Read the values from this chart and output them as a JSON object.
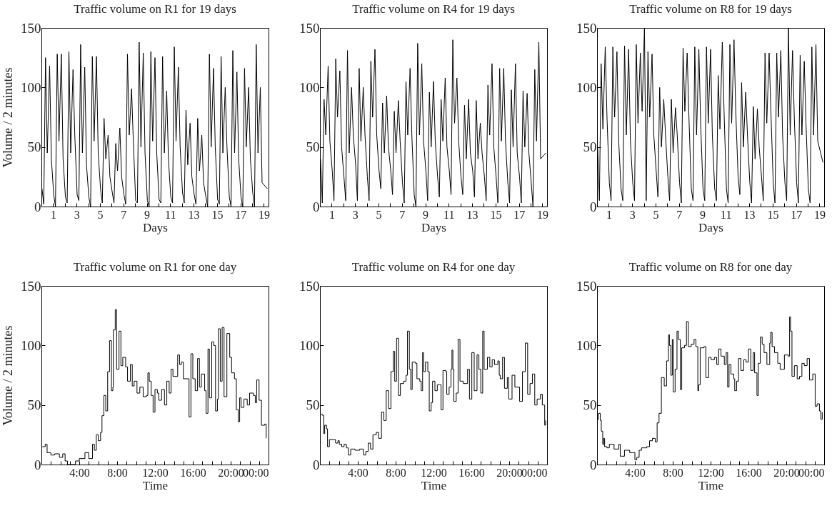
{
  "chart_data": [
    {
      "type": "line",
      "title": "Traffic volume on R1 for 19 days",
      "xlabel": "Days",
      "ylabel": "Volume / 2 minutes",
      "xlim": [
        0,
        19.4
      ],
      "ylim": [
        0,
        150
      ],
      "yticks": [
        0,
        50,
        100,
        150
      ],
      "xticks": [
        1,
        {
          "value": 2,
          "label": null
        },
        3,
        {
          "value": 4,
          "label": null
        },
        5,
        {
          "value": 6,
          "label": null
        },
        7,
        {
          "value": 8,
          "label": null
        },
        9,
        {
          "value": 10,
          "label": null
        },
        11,
        {
          "value": 12,
          "label": null
        },
        13,
        {
          "value": 14,
          "label": null
        },
        15,
        {
          "value": 16,
          "label": null
        },
        17,
        {
          "value": 18,
          "label": null
        },
        19
      ],
      "x": [
        0.05,
        0.2,
        0.35,
        0.5,
        0.7,
        0.85,
        1.05,
        1.2,
        1.35,
        1.5,
        1.7,
        1.85,
        2.05,
        2.2,
        2.35,
        2.5,
        2.7,
        2.85,
        3.05,
        3.2,
        3.35,
        3.5,
        3.7,
        3.85,
        4.05,
        4.2,
        4.35,
        4.5,
        4.7,
        4.85,
        5.05,
        5.2,
        5.35,
        5.5,
        5.7,
        5.85,
        6.05,
        6.2,
        6.35,
        6.5,
        6.7,
        6.85,
        7.05,
        7.2,
        7.35,
        7.5,
        7.7,
        7.85,
        8.05,
        8.2,
        8.35,
        8.5,
        8.7,
        8.85,
        9.05,
        9.2,
        9.35,
        9.5,
        9.7,
        9.85,
        10.05,
        10.2,
        10.35,
        10.5,
        10.7,
        10.85,
        11.05,
        11.2,
        11.35,
        11.5,
        11.7,
        11.85,
        12.05,
        12.2,
        12.35,
        12.5,
        12.7,
        12.85,
        13.05,
        13.2,
        13.35,
        13.5,
        13.7,
        13.85,
        14.05,
        14.2,
        14.35,
        14.5,
        14.7,
        14.85,
        15.05,
        15.2,
        15.35,
        15.5,
        15.7,
        15.85,
        16.05,
        16.2,
        16.35,
        16.5,
        16.7,
        16.85,
        17.05,
        17.2,
        17.35,
        17.5,
        17.7,
        17.85,
        18.05,
        18.2,
        18.35,
        18.5,
        18.7,
        18.85,
        19.3
      ],
      "series": [
        {
          "color": "#000000",
          "values": [
            15,
            2,
            125,
            45,
            118,
            40,
            10,
            0,
            128,
            55,
            128,
            40,
            8,
            3,
            130,
            45,
            115,
            60,
            10,
            5,
            136,
            45,
            117,
            35,
            8,
            0,
            126,
            55,
            126,
            45,
            15,
            3,
            74,
            40,
            60,
            25,
            12,
            3,
            53,
            30,
            66,
            25,
            10,
            2,
            128,
            60,
            99,
            55,
            5,
            3,
            138,
            50,
            129,
            45,
            5,
            0,
            130,
            55,
            125,
            45,
            6,
            3,
            126,
            45,
            97,
            40,
            8,
            3,
            134,
            55,
            117,
            50,
            12,
            3,
            81,
            35,
            70,
            25,
            10,
            2,
            74,
            30,
            60,
            20,
            8,
            0,
            128,
            50,
            116,
            50,
            6,
            2,
            126,
            45,
            100,
            50,
            8,
            0,
            131,
            45,
            113,
            40,
            8,
            0,
            116,
            50,
            100,
            40,
            12,
            0,
            136,
            45,
            100,
            20,
            15
          ]
        }
      ]
    },
    {
      "type": "line",
      "title": "Traffic volume on R4 for 19 days",
      "xlabel": "Days",
      "xlim": [
        0,
        19.4
      ],
      "ylim": [
        0,
        150
      ],
      "yticks": [
        0,
        50,
        100,
        150
      ],
      "xticks": [
        1,
        {
          "value": 2,
          "label": null
        },
        3,
        {
          "value": 4,
          "label": null
        },
        5,
        {
          "value": 6,
          "label": null
        },
        7,
        {
          "value": 8,
          "label": null
        },
        9,
        {
          "value": 10,
          "label": null
        },
        11,
        {
          "value": 12,
          "label": null
        },
        13,
        {
          "value": 14,
          "label": null
        },
        15,
        {
          "value": 16,
          "label": null
        },
        17,
        {
          "value": 18,
          "label": null
        },
        19
      ],
      "x": [
        0.05,
        0.2,
        0.35,
        0.5,
        0.7,
        0.85,
        1.05,
        1.2,
        1.35,
        1.5,
        1.7,
        1.85,
        2.05,
        2.2,
        2.35,
        2.5,
        2.7,
        2.85,
        3.05,
        3.2,
        3.35,
        3.5,
        3.7,
        3.85,
        4.05,
        4.2,
        4.35,
        4.5,
        4.7,
        4.85,
        5.05,
        5.2,
        5.35,
        5.5,
        5.7,
        5.85,
        6.05,
        6.2,
        6.35,
        6.5,
        6.7,
        6.85,
        7.05,
        7.2,
        7.35,
        7.5,
        7.7,
        7.85,
        8.05,
        8.2,
        8.35,
        8.5,
        8.7,
        8.85,
        9.05,
        9.2,
        9.35,
        9.5,
        9.7,
        9.85,
        10.05,
        10.2,
        10.35,
        10.5,
        10.7,
        10.85,
        11.05,
        11.2,
        11.35,
        11.5,
        11.7,
        11.85,
        12.05,
        12.2,
        12.35,
        12.5,
        12.7,
        12.85,
        13.05,
        13.2,
        13.35,
        13.5,
        13.7,
        13.85,
        14.05,
        14.2,
        14.35,
        14.5,
        14.7,
        14.85,
        15.05,
        15.2,
        15.35,
        15.5,
        15.7,
        15.85,
        16.05,
        16.2,
        16.35,
        16.5,
        16.7,
        16.85,
        17.05,
        17.2,
        17.35,
        17.5,
        17.7,
        17.85,
        18.05,
        18.2,
        18.35,
        18.5,
        18.7,
        18.85,
        19.3
      ],
      "series": [
        {
          "color": "#000000",
          "values": [
            40,
            3,
            90,
            60,
            118,
            55,
            30,
            5,
            124,
            75,
            114,
            50,
            25,
            5,
            131,
            45,
            100,
            60,
            35,
            5,
            116,
            55,
            100,
            60,
            25,
            5,
            122,
            75,
            132,
            60,
            30,
            15,
            87,
            45,
            93,
            50,
            30,
            10,
            80,
            45,
            89,
            55,
            20,
            3,
            105,
            60,
            116,
            60,
            10,
            0,
            137,
            60,
            120,
            55,
            30,
            5,
            96,
            50,
            105,
            55,
            25,
            8,
            90,
            55,
            108,
            50,
            30,
            10,
            140,
            70,
            108,
            55,
            25,
            10,
            85,
            40,
            90,
            45,
            30,
            8,
            89,
            40,
            70,
            45,
            25,
            5,
            102,
            60,
            120,
            50,
            25,
            3,
            116,
            55,
            116,
            55,
            20,
            3,
            98,
            50,
            120,
            45,
            25,
            3,
            97,
            50,
            95,
            45,
            20,
            0,
            115,
            55,
            138,
            40,
            45
          ]
        }
      ]
    },
    {
      "type": "line",
      "title": "Traffic volume on R8 for 19 days",
      "xlabel": "Days",
      "xlim": [
        0,
        19.4
      ],
      "ylim": [
        0,
        150
      ],
      "yticks": [
        0,
        50,
        100,
        150
      ],
      "xticks": [
        1,
        {
          "value": 2,
          "label": null
        },
        3,
        {
          "value": 4,
          "label": null
        },
        5,
        {
          "value": 6,
          "label": null
        },
        7,
        {
          "value": 8,
          "label": null
        },
        9,
        {
          "value": 10,
          "label": null
        },
        11,
        {
          "value": 12,
          "label": null
        },
        13,
        {
          "value": 14,
          "label": null
        },
        15,
        {
          "value": 16,
          "label": null
        },
        17,
        {
          "value": 18,
          "label": null
        },
        19
      ],
      "x": [
        0.05,
        0.2,
        0.35,
        0.5,
        0.7,
        0.85,
        1.05,
        1.2,
        1.35,
        1.5,
        1.7,
        1.85,
        2.05,
        2.2,
        2.35,
        2.5,
        2.7,
        2.85,
        3.05,
        3.2,
        3.35,
        3.5,
        3.7,
        3.85,
        4.05,
        4.2,
        4.35,
        4.5,
        4.7,
        4.85,
        5.05,
        5.2,
        5.35,
        5.5,
        5.7,
        5.85,
        6.05,
        6.2,
        6.35,
        6.5,
        6.7,
        6.85,
        7.05,
        7.2,
        7.35,
        7.5,
        7.7,
        7.85,
        8.05,
        8.2,
        8.35,
        8.5,
        8.7,
        8.85,
        9.05,
        9.2,
        9.35,
        9.5,
        9.7,
        9.85,
        10.05,
        10.2,
        10.35,
        10.5,
        10.7,
        10.85,
        11.05,
        11.2,
        11.35,
        11.5,
        11.7,
        11.85,
        12.05,
        12.2,
        12.35,
        12.5,
        12.7,
        12.85,
        13.05,
        13.2,
        13.35,
        13.5,
        13.7,
        13.85,
        14.05,
        14.2,
        14.35,
        14.5,
        14.7,
        14.85,
        15.05,
        15.2,
        15.35,
        15.5,
        15.7,
        15.85,
        16.05,
        16.2,
        16.35,
        16.5,
        16.7,
        16.85,
        17.05,
        17.2,
        17.35,
        17.5,
        17.7,
        17.85,
        18.05,
        18.2,
        18.35,
        18.5,
        18.7,
        18.85,
        19.3
      ],
      "series": [
        {
          "color": "#000000",
          "values": [
            50,
            5,
            120,
            65,
            134,
            75,
            20,
            5,
            134,
            75,
            130,
            55,
            15,
            5,
            135,
            60,
            132,
            55,
            20,
            5,
            136,
            70,
            129,
            80,
            150,
            5,
            130,
            75,
            128,
            60,
            30,
            8,
            100,
            50,
            90,
            60,
            25,
            5,
            90,
            45,
            83,
            60,
            20,
            3,
            133,
            80,
            129,
            75,
            15,
            5,
            134,
            60,
            132,
            70,
            15,
            5,
            134,
            70,
            132,
            60,
            15,
            5,
            110,
            65,
            138,
            80,
            15,
            3,
            136,
            70,
            140,
            80,
            25,
            10,
            104,
            50,
            96,
            60,
            20,
            3,
            84,
            40,
            82,
            50,
            25,
            5,
            129,
            70,
            129,
            80,
            20,
            3,
            129,
            75,
            131,
            60,
            20,
            5,
            150,
            60,
            131,
            75,
            20,
            3,
            127,
            60,
            122,
            70,
            15,
            3,
            134,
            60,
            136,
            55,
            37
          ]
        }
      ]
    },
    {
      "type": "step",
      "title": "Traffic volume on R1 for one day",
      "xlabel": "Time",
      "ylabel": "Volume / 2 minutes",
      "xlim": [
        0,
        24
      ],
      "ylim": [
        0,
        150
      ],
      "yticks": [
        0,
        50,
        100,
        150
      ],
      "xticks": [
        {
          "value": 1,
          "label": null
        },
        {
          "value": 2,
          "label": null
        },
        {
          "value": 3,
          "label": null
        },
        {
          "value": 4,
          "label": "4:00"
        },
        {
          "value": 5,
          "label": null
        },
        {
          "value": 6,
          "label": null
        },
        {
          "value": 7,
          "label": null
        },
        {
          "value": 8,
          "label": "8:00"
        },
        {
          "value": 9,
          "label": null
        },
        {
          "value": 10,
          "label": null
        },
        {
          "value": 11,
          "label": null
        },
        {
          "value": 12,
          "label": "12:00"
        },
        {
          "value": 13,
          "label": null
        },
        {
          "value": 14,
          "label": null
        },
        {
          "value": 15,
          "label": null
        },
        {
          "value": 16,
          "label": "16:00"
        },
        {
          "value": 17,
          "label": null
        },
        {
          "value": 18,
          "label": null
        },
        {
          "value": 19,
          "label": null
        },
        {
          "value": 20,
          "label": "20:00"
        },
        {
          "value": 21,
          "label": null
        },
        {
          "value": 22,
          "label": null
        },
        {
          "value": 23,
          "label": null
        },
        {
          "value": 24,
          "label": "00:00"
        }
      ],
      "x": [
        0.1,
        0.4,
        0.6,
        1.0,
        1.4,
        1.9,
        2.25,
        2.5,
        2.75,
        3.1,
        3.6,
        4.0,
        4.6,
        5.0,
        5.4,
        5.6,
        5.8,
        6.0,
        6.25,
        6.4,
        6.6,
        6.8,
        7.0,
        7.2,
        7.4,
        7.55,
        7.6,
        7.8,
        7.95,
        8.2,
        8.4,
        8.6,
        8.9,
        9.1,
        9.4,
        9.6,
        9.8,
        10.1,
        10.4,
        10.75,
        11.1,
        11.25,
        11.4,
        11.6,
        11.8,
        12.0,
        12.25,
        12.4,
        12.7,
        13.0,
        13.25,
        13.5,
        13.7,
        13.9,
        14.1,
        14.4,
        14.6,
        14.8,
        15.0,
        15.6,
        15.8,
        16.0,
        16.25,
        16.5,
        16.7,
        16.9,
        17.25,
        17.4,
        17.6,
        17.75,
        18.0,
        18.2,
        18.4,
        18.6,
        18.7,
        18.9,
        19.1,
        19.3,
        19.6,
        19.9,
        20.1,
        20.4,
        20.6,
        20.8,
        20.95,
        21.1,
        21.4,
        21.75,
        22.0,
        22.4,
        22.6,
        22.75,
        23.0,
        23.25,
        23.6,
        23.75
      ],
      "series": [
        {
          "color": "#000000",
          "values": [
            15,
            17,
            10,
            8,
            9,
            6,
            9,
            3,
            0,
            0,
            3,
            5,
            10,
            5,
            17,
            12,
            25,
            20,
            27,
            41,
            58,
            45,
            78,
            104,
            62,
            65,
            113,
            130,
            80,
            112,
            83,
            90,
            82,
            70,
            84,
            66,
            70,
            60,
            65,
            57,
            58,
            77,
            70,
            58,
            44,
            63,
            60,
            54,
            63,
            50,
            70,
            60,
            80,
            74,
            74,
            92,
            84,
            86,
            72,
            40,
            93,
            72,
            62,
            89,
            65,
            76,
            62,
            43,
            97,
            56,
            103,
            100,
            45,
            55,
            114,
            70,
            115,
            57,
            110,
            90,
            77,
            72,
            46,
            36,
            56,
            48,
            55,
            50,
            60,
            58,
            52,
            71,
            54,
            33,
            34,
            22
          ]
        }
      ]
    },
    {
      "type": "step",
      "title": "Traffic volume on R4 for one day",
      "xlabel": "Time",
      "xlim": [
        0,
        24
      ],
      "ylim": [
        0,
        150
      ],
      "yticks": [
        0,
        50,
        100,
        150
      ],
      "xticks": [
        {
          "value": 1,
          "label": null
        },
        {
          "value": 2,
          "label": null
        },
        {
          "value": 3,
          "label": null
        },
        {
          "value": 4,
          "label": "4:00"
        },
        {
          "value": 5,
          "label": null
        },
        {
          "value": 6,
          "label": null
        },
        {
          "value": 7,
          "label": null
        },
        {
          "value": 8,
          "label": "8:00"
        },
        {
          "value": 9,
          "label": null
        },
        {
          "value": 10,
          "label": null
        },
        {
          "value": 11,
          "label": null
        },
        {
          "value": 12,
          "label": "12:00"
        },
        {
          "value": 13,
          "label": null
        },
        {
          "value": 14,
          "label": null
        },
        {
          "value": 15,
          "label": null
        },
        {
          "value": 16,
          "label": "16:00"
        },
        {
          "value": 17,
          "label": null
        },
        {
          "value": 18,
          "label": null
        },
        {
          "value": 19,
          "label": null
        },
        {
          "value": 20,
          "label": "20:00"
        },
        {
          "value": 21,
          "label": null
        },
        {
          "value": 22,
          "label": null
        },
        {
          "value": 23,
          "label": null
        },
        {
          "value": 24,
          "label": "00:00"
        }
      ],
      "x": [
        0.1,
        0.3,
        0.4,
        0.5,
        0.7,
        0.8,
        1.0,
        1.45,
        1.65,
        1.9,
        2.05,
        2.3,
        2.55,
        2.8,
        3.0,
        3.25,
        3.7,
        4.2,
        4.6,
        4.85,
        5.1,
        5.35,
        5.6,
        5.95,
        6.2,
        6.5,
        6.75,
        7.0,
        7.25,
        7.5,
        7.75,
        7.9,
        8.1,
        8.3,
        8.5,
        8.85,
        9.1,
        9.25,
        9.45,
        9.6,
        9.75,
        10.1,
        10.25,
        10.55,
        10.7,
        10.85,
        10.95,
        11.15,
        11.4,
        11.55,
        11.75,
        11.9,
        12.15,
        12.4,
        12.65,
        12.8,
        13.0,
        13.3,
        13.4,
        13.65,
        13.85,
        13.95,
        14.05,
        14.15,
        14.4,
        14.6,
        14.8,
        15.15,
        15.4,
        15.6,
        15.8,
        16.05,
        16.3,
        16.6,
        16.8,
        17.0,
        17.2,
        17.35,
        17.7,
        17.95,
        18.2,
        18.45,
        18.8,
        18.95,
        19.05,
        19.3,
        19.5,
        19.8,
        19.95,
        20.3,
        20.6,
        21.1,
        21.4,
        21.7,
        21.95,
        22.2,
        22.45,
        22.7,
        22.95,
        23.3,
        23.5,
        23.65,
        23.75,
        23.85
      ],
      "series": [
        {
          "color": "#000000",
          "values": [
            42,
            41,
            26,
            33,
            30,
            15,
            21,
            21,
            18,
            20,
            17,
            15,
            17,
            14,
            8,
            13,
            12,
            13,
            8,
            11,
            18,
            13,
            25,
            27,
            22,
            44,
            37,
            62,
            47,
            78,
            95,
            70,
            106,
            58,
            68,
            70,
            75,
            112,
            80,
            63,
            86,
            85,
            72,
            70,
            62,
            94,
            78,
            86,
            78,
            45,
            52,
            70,
            62,
            67,
            67,
            46,
            79,
            78,
            59,
            65,
            80,
            96,
            80,
            53,
            60,
            105,
            70,
            68,
            68,
            80,
            55,
            94,
            62,
            92,
            80,
            60,
            112,
            80,
            90,
            82,
            88,
            84,
            87,
            75,
            72,
            90,
            64,
            73,
            55,
            75,
            65,
            53,
            78,
            102,
            59,
            68,
            76,
            50,
            55,
            59,
            50,
            50,
            33,
            37
          ]
        }
      ]
    },
    {
      "type": "step",
      "title": "Traffic volume on R8 for one day",
      "xlabel": "Time",
      "xlim": [
        0,
        24
      ],
      "ylim": [
        0,
        150
      ],
      "yticks": [
        0,
        50,
        100,
        150
      ],
      "xticks": [
        {
          "value": 1,
          "label": null
        },
        {
          "value": 2,
          "label": null
        },
        {
          "value": 3,
          "label": null
        },
        {
          "value": 4,
          "label": "4:00"
        },
        {
          "value": 5,
          "label": null
        },
        {
          "value": 6,
          "label": null
        },
        {
          "value": 7,
          "label": null
        },
        {
          "value": 8,
          "label": "8:00"
        },
        {
          "value": 9,
          "label": null
        },
        {
          "value": 10,
          "label": null
        },
        {
          "value": 11,
          "label": null
        },
        {
          "value": 12,
          "label": "12:00"
        },
        {
          "value": 13,
          "label": null
        },
        {
          "value": 14,
          "label": null
        },
        {
          "value": 15,
          "label": null
        },
        {
          "value": 16,
          "label": "16:00"
        },
        {
          "value": 17,
          "label": null
        },
        {
          "value": 18,
          "label": null
        },
        {
          "value": 19,
          "label": null
        },
        {
          "value": 20,
          "label": "20:00"
        },
        {
          "value": 21,
          "label": null
        },
        {
          "value": 22,
          "label": null
        },
        {
          "value": 23,
          "label": null
        },
        {
          "value": 24,
          "label": "00:00"
        }
      ],
      "x": [
        0.05,
        0.15,
        0.35,
        0.45,
        0.6,
        0.7,
        0.8,
        1.05,
        1.3,
        1.55,
        1.8,
        2.15,
        2.3,
        2.45,
        2.6,
        2.9,
        3.15,
        3.45,
        3.8,
        4.0,
        4.2,
        4.45,
        4.7,
        5.25,
        5.55,
        5.85,
        6.15,
        6.35,
        6.55,
        6.8,
        7.1,
        7.35,
        7.55,
        7.65,
        7.8,
        7.95,
        8.05,
        8.25,
        8.45,
        8.6,
        8.8,
        8.95,
        9.25,
        9.45,
        9.65,
        9.95,
        10.25,
        10.45,
        10.65,
        10.75,
        10.9,
        11.3,
        11.5,
        11.8,
        12.05,
        12.4,
        12.65,
        12.85,
        13.1,
        13.45,
        13.65,
        13.8,
        13.95,
        14.15,
        14.45,
        14.55,
        14.75,
        14.95,
        15.2,
        15.5,
        15.75,
        16.0,
        16.25,
        16.5,
        16.65,
        16.9,
        17.05,
        17.25,
        17.45,
        17.65,
        17.95,
        18.25,
        18.35,
        18.5,
        18.75,
        19.1,
        19.35,
        19.8,
        20.2,
        20.35,
        20.45,
        20.6,
        20.85,
        21.15,
        21.4,
        21.65,
        21.9,
        22.2,
        22.45,
        22.8,
        23.05,
        23.25,
        23.5,
        23.65,
        23.8
      ],
      "series": [
        {
          "color": "#000000",
          "values": [
            38,
            43,
            37,
            28,
            17,
            22,
            15,
            14,
            17,
            17,
            13,
            13,
            17,
            7,
            7,
            12,
            12,
            10,
            10,
            4,
            6,
            12,
            14,
            15,
            20,
            22,
            19,
            35,
            43,
            73,
            66,
            87,
            109,
            100,
            75,
            105,
            61,
            80,
            112,
            105,
            63,
            98,
            100,
            120,
            99,
            101,
            105,
            99,
            62,
            67,
            98,
            99,
            73,
            90,
            88,
            90,
            84,
            97,
            91,
            84,
            94,
            65,
            84,
            76,
            72,
            62,
            70,
            89,
            79,
            88,
            86,
            97,
            79,
            94,
            77,
            58,
            85,
            107,
            101,
            94,
            84,
            102,
            111,
            99,
            94,
            85,
            80,
            92,
            91,
            124,
            112,
            74,
            83,
            72,
            74,
            85,
            83,
            89,
            71,
            76,
            49,
            51,
            45,
            38,
            44
          ]
        }
      ]
    }
  ]
}
